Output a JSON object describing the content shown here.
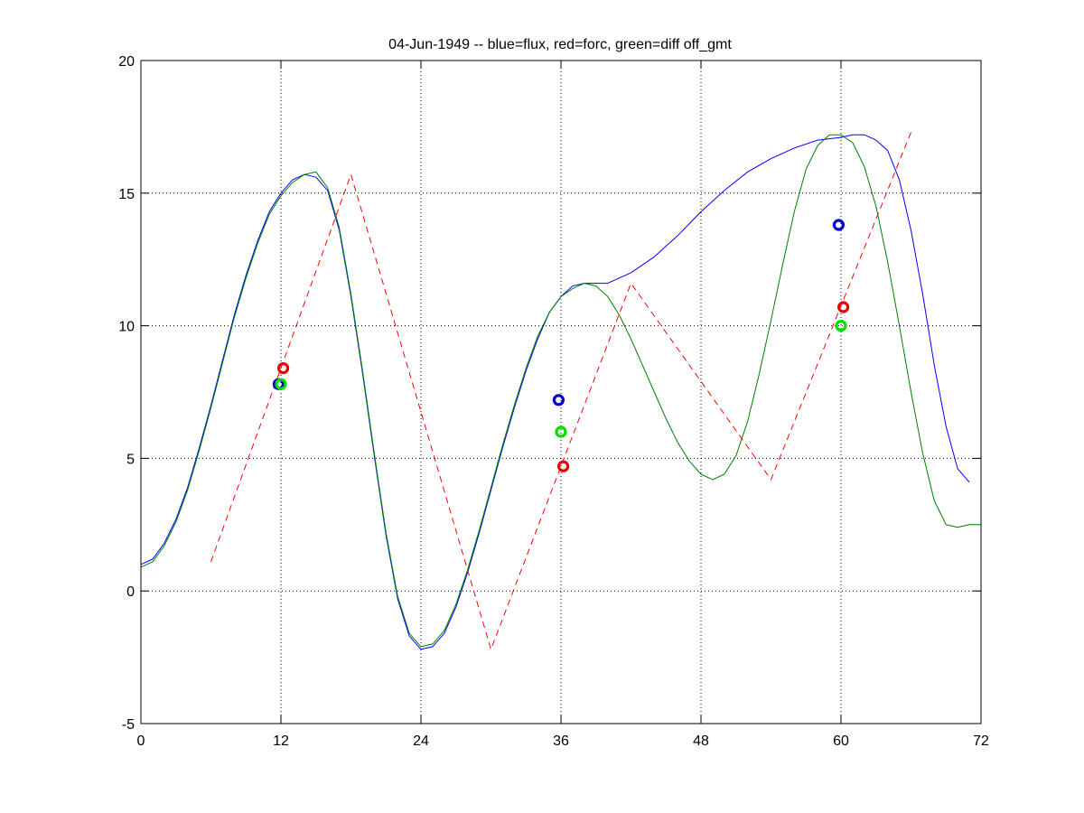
{
  "chart_data": {
    "type": "line",
    "title": "04-Jun-1949 -- blue=flux, red=forc, green=diff off_gmt",
    "xlabel": "",
    "ylabel": "",
    "xlim": [
      0,
      72
    ],
    "ylim": [
      -5,
      20
    ],
    "xticks": [
      0,
      12,
      24,
      36,
      48,
      60,
      72
    ],
    "yticks": [
      -5,
      0,
      5,
      10,
      15,
      20
    ],
    "grid": true,
    "colors": {
      "flux": "#0000ff",
      "forc": "#ff0000",
      "diff": "#008000",
      "flux_marker": "#0000cc",
      "forc_marker": "#ee0000",
      "diff_marker": "#00dd00"
    },
    "series": [
      {
        "key": "flux",
        "style": "solid",
        "x": [
          0,
          1,
          2,
          3,
          4,
          5,
          6,
          7,
          8,
          9,
          10,
          11,
          12,
          13,
          14,
          15,
          16,
          17,
          18,
          19,
          20,
          21,
          22,
          23,
          24,
          25,
          26,
          27,
          28,
          29,
          30,
          31,
          32,
          33,
          34,
          35,
          36,
          37,
          38,
          39,
          40,
          42,
          44,
          46,
          48,
          50,
          52,
          54,
          56,
          58,
          60,
          61,
          62,
          63,
          64,
          65,
          66,
          67,
          68,
          69,
          70,
          71
        ],
        "y": [
          1.0,
          1.2,
          1.8,
          2.7,
          3.9,
          5.4,
          7.0,
          8.7,
          10.4,
          11.9,
          13.2,
          14.3,
          15.0,
          15.5,
          15.7,
          15.6,
          15.1,
          13.6,
          11.1,
          8.2,
          5.1,
          2.1,
          -0.3,
          -1.7,
          -2.2,
          -2.1,
          -1.6,
          -0.6,
          0.7,
          2.2,
          3.8,
          5.4,
          6.9,
          8.3,
          9.5,
          10.5,
          11.1,
          11.5,
          11.6,
          11.6,
          11.6,
          12.0,
          12.6,
          13.4,
          14.3,
          15.1,
          15.8,
          16.3,
          16.7,
          17.0,
          17.1,
          17.2,
          17.2,
          17.0,
          16.6,
          15.5,
          13.6,
          11.2,
          8.5,
          6.2,
          4.6,
          4.1
        ]
      },
      {
        "key": "diff",
        "style": "solid",
        "x": [
          0,
          1,
          2,
          3,
          4,
          5,
          6,
          7,
          8,
          9,
          10,
          11,
          12,
          13,
          14,
          15,
          16,
          17,
          18,
          19,
          20,
          21,
          22,
          23,
          24,
          25,
          26,
          27,
          28,
          29,
          30,
          31,
          32,
          33,
          34,
          35,
          36,
          37,
          38,
          39,
          40,
          41,
          42,
          43,
          44,
          45,
          46,
          47,
          48,
          49,
          50,
          51,
          52,
          53,
          54,
          55,
          56,
          57,
          58,
          59,
          60,
          61,
          62,
          63,
          64,
          65,
          66,
          67,
          68,
          69,
          70,
          71,
          72
        ],
        "y": [
          0.9,
          1.1,
          1.7,
          2.6,
          3.8,
          5.3,
          6.9,
          8.6,
          10.3,
          11.8,
          13.1,
          14.2,
          14.9,
          15.4,
          15.7,
          15.8,
          15.2,
          13.7,
          11.2,
          8.3,
          5.2,
          2.2,
          -0.2,
          -1.6,
          -2.1,
          -2.0,
          -1.5,
          -0.5,
          0.8,
          2.3,
          3.9,
          5.5,
          7.0,
          8.4,
          9.6,
          10.5,
          11.1,
          11.4,
          11.6,
          11.5,
          11.1,
          10.4,
          9.5,
          8.5,
          7.5,
          6.5,
          5.6,
          4.9,
          4.4,
          4.2,
          4.4,
          5.1,
          6.4,
          8.2,
          10.2,
          12.3,
          14.3,
          15.9,
          16.8,
          17.2,
          17.2,
          16.9,
          16.0,
          14.5,
          12.4,
          10.0,
          7.5,
          5.2,
          3.4,
          2.5,
          2.4,
          2.5,
          2.5
        ]
      },
      {
        "key": "forc",
        "style": "dashed",
        "x": [
          6,
          18,
          30,
          42,
          54,
          66
        ],
        "y": [
          1.1,
          15.7,
          -2.2,
          11.6,
          4.2,
          17.3
        ]
      }
    ],
    "markers": [
      {
        "key": "flux_marker",
        "x": 11.8,
        "y": 7.8
      },
      {
        "key": "diff_marker",
        "x": 12.0,
        "y": 7.8
      },
      {
        "key": "forc_marker",
        "x": 12.2,
        "y": 8.4
      },
      {
        "key": "flux_marker",
        "x": 35.8,
        "y": 7.2
      },
      {
        "key": "diff_marker",
        "x": 36.0,
        "y": 6.0
      },
      {
        "key": "forc_marker",
        "x": 36.2,
        "y": 4.7
      },
      {
        "key": "flux_marker",
        "x": 59.8,
        "y": 13.8
      },
      {
        "key": "diff_marker",
        "x": 60.0,
        "y": 10.0
      },
      {
        "key": "forc_marker",
        "x": 60.2,
        "y": 10.7
      }
    ]
  }
}
